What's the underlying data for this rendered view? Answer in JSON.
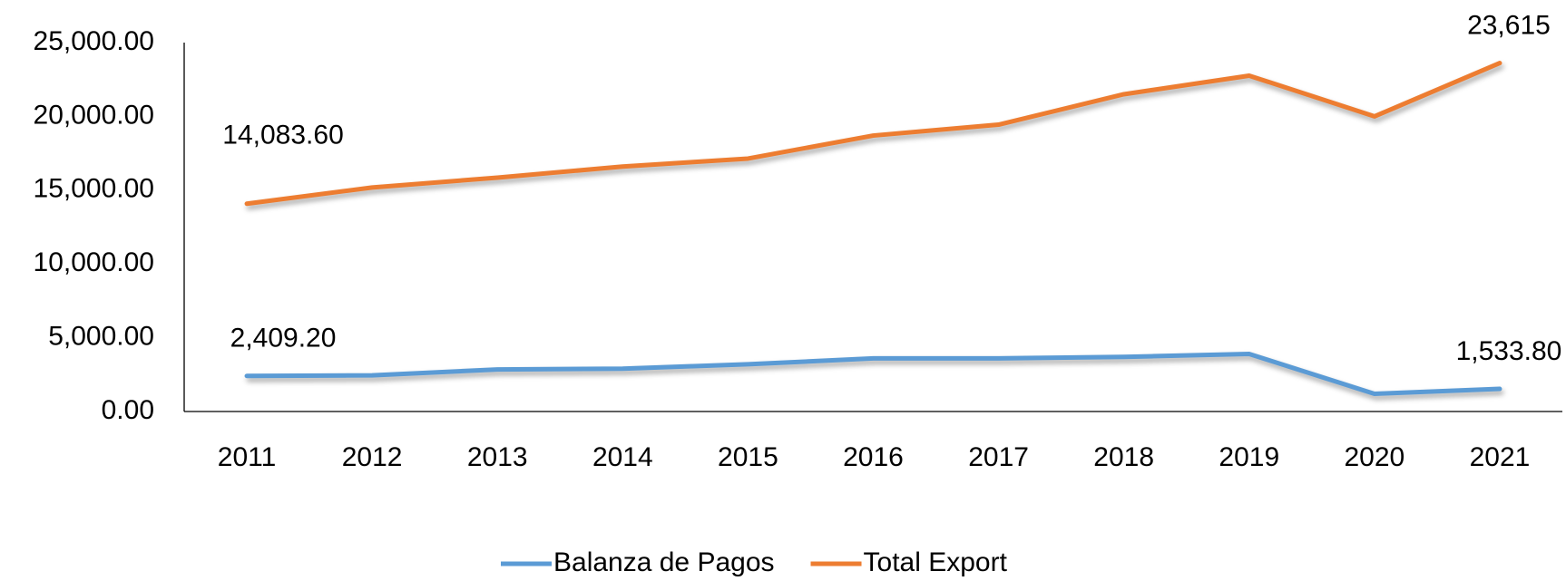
{
  "chart_data": {
    "type": "line",
    "categories": [
      "2011",
      "2012",
      "2013",
      "2014",
      "2015",
      "2016",
      "2017",
      "2018",
      "2019",
      "2020",
      "2021"
    ],
    "series": [
      {
        "name": "Balanza de Pagos",
        "color": "#5b9bd5",
        "values": [
          2409.2,
          2450,
          2850,
          2900,
          3200,
          3600,
          3600,
          3700,
          3900,
          1200,
          1533.8
        ],
        "value_labels": [
          "2,409.20",
          null,
          null,
          null,
          null,
          null,
          null,
          null,
          null,
          null,
          "1,533.80"
        ]
      },
      {
        "name": "Total Export",
        "color": "#ed7d31",
        "values": [
          14083.6,
          15180,
          15850,
          16600,
          17140,
          18700,
          19440,
          21500,
          22760,
          20000,
          23615
        ],
        "value_labels": [
          "14,083.60",
          null,
          null,
          null,
          null,
          null,
          null,
          null,
          null,
          null,
          "23,615"
        ]
      }
    ],
    "ylim": [
      0,
      25000
    ],
    "yticks": [
      {
        "value": 0,
        "label": "0.00"
      },
      {
        "value": 5000,
        "label": "5,000.00"
      },
      {
        "value": 10000,
        "label": "10,000.00"
      },
      {
        "value": 15000,
        "label": "15,000.00"
      },
      {
        "value": 20000,
        "label": "20,000.00"
      },
      {
        "value": 25000,
        "label": "25,000.00"
      }
    ],
    "grid": false,
    "legend": "bottom"
  }
}
